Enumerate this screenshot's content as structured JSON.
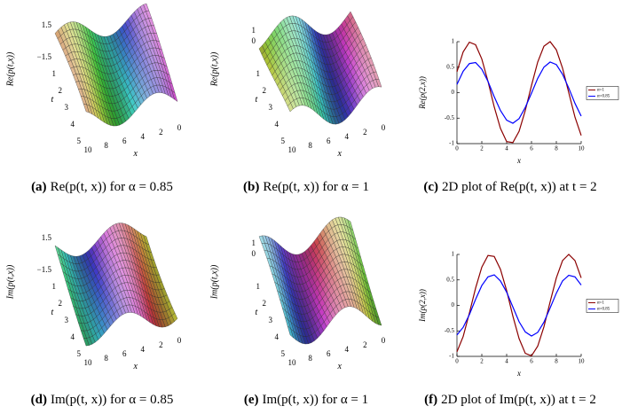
{
  "chart_data": [
    {
      "type": "surface",
      "label": "(a)",
      "caption": "Re(p(t, x)) for α = 0.85",
      "zlabel": "Re(p(t,x))",
      "xlabel": "x",
      "ylabel": "t",
      "xlim": [
        0,
        10
      ],
      "ylim": [
        0,
        5
      ],
      "xticks": [
        0,
        2,
        4,
        6,
        8,
        10
      ],
      "yticks": [
        1,
        2,
        3,
        4,
        5
      ],
      "zticks": [
        1.5,
        {
          "value": -1.5,
          "label": "−1.5"
        }
      ]
    },
    {
      "type": "surface",
      "label": "(b)",
      "caption": "Re(p(t, x)) for α = 1",
      "zlabel": "Re(p(t,x))",
      "xlabel": "x",
      "ylabel": "t",
      "xlim": [
        0,
        10
      ],
      "ylim": [
        0,
        5
      ],
      "xticks": [
        0,
        2,
        4,
        6,
        8,
        10
      ],
      "yticks": [
        1,
        2,
        3,
        4,
        5
      ],
      "zticks": [
        1,
        0
      ]
    },
    {
      "type": "line",
      "label": "(c)",
      "caption": "2D plot of Re(p(t, x)) at t = 2",
      "ylabel": "Re(p(2,x))",
      "xlabel": "x",
      "x": [
        0,
        0.5,
        1,
        1.5,
        2,
        2.5,
        3,
        3.5,
        4,
        4.5,
        5,
        5.5,
        6,
        6.5,
        7,
        7.5,
        8,
        8.5,
        9,
        9.5,
        10
      ],
      "series": [
        {
          "name": "α=1",
          "color": "#8b0000",
          "values": [
            0.41,
            0.8,
            0.99,
            0.94,
            0.66,
            0.22,
            -0.28,
            -0.7,
            -0.96,
            -0.98,
            -0.76,
            -0.35,
            0.14,
            0.6,
            0.91,
            1,
            0.84,
            0.48,
            0,
            -0.48,
            -0.84
          ]
        },
        {
          "name": "α=0.85",
          "color": "#0000ff",
          "values": [
            0.16,
            0.42,
            0.57,
            0.59,
            0.46,
            0.22,
            -0.08,
            -0.35,
            -0.54,
            -0.6,
            -0.51,
            -0.29,
            -0.01,
            0.28,
            0.5,
            0.6,
            0.55,
            0.36,
            0.09,
            -0.21,
            -0.46
          ]
        }
      ],
      "xlim": [
        0,
        10
      ],
      "ylim": [
        -1,
        1
      ],
      "xticks": [
        0,
        2,
        4,
        6,
        8,
        10
      ],
      "yticks": [
        -1,
        -0.5,
        0,
        0.5,
        1
      ]
    },
    {
      "type": "surface",
      "label": "(d)",
      "caption": "Im(p(t, x)) for α = 0.85",
      "zlabel": "Im(p(t,x))",
      "xlabel": "x",
      "ylabel": "t",
      "xlim": [
        0,
        10
      ],
      "ylim": [
        0,
        5
      ],
      "xticks": [
        0,
        2,
        4,
        6,
        8,
        10
      ],
      "yticks": [
        1,
        2,
        3,
        4,
        5
      ],
      "zticks": [
        1.5,
        {
          "value": -1.5,
          "label": "−1.5"
        }
      ]
    },
    {
      "type": "surface",
      "label": "(e)",
      "caption": "Im(p(t, x)) for α = 1",
      "zlabel": "Im(p(t,x))",
      "xlabel": "x",
      "ylabel": "t",
      "xlim": [
        0,
        10
      ],
      "ylim": [
        0,
        5
      ],
      "xticks": [
        0,
        2,
        4,
        6,
        8,
        10
      ],
      "yticks": [
        1,
        2,
        3,
        4,
        5
      ],
      "zticks": [
        1,
        0
      ]
    },
    {
      "type": "line",
      "label": "(f)",
      "caption": "2D plot of Im(p(t, x)) at t = 2",
      "ylabel": "Im(p(2,x))",
      "xlabel": "x",
      "x": [
        0,
        0.5,
        1,
        1.5,
        2,
        2.5,
        3,
        3.5,
        4,
        4.5,
        5,
        5.5,
        6,
        6.5,
        7,
        7.5,
        8,
        8.5,
        9,
        9.5,
        10
      ],
      "series": [
        {
          "name": "α=1",
          "color": "#8b0000",
          "values": [
            -0.91,
            -0.61,
            -0.15,
            0.34,
            0.75,
            0.98,
            0.96,
            0.71,
            0.29,
            -0.21,
            -0.65,
            -0.94,
            -0.99,
            -0.8,
            -0.42,
            0.07,
            0.54,
            0.88,
            1,
            0.88,
            0.54
          ]
        },
        {
          "name": "α=0.85",
          "color": "#0000ff",
          "values": [
            -0.58,
            -0.43,
            -0.18,
            0.12,
            0.39,
            0.56,
            0.6,
            0.48,
            0.26,
            -0.03,
            -0.32,
            -0.52,
            -0.6,
            -0.53,
            -0.33,
            -0.05,
            0.24,
            0.48,
            0.59,
            0.56,
            0.4
          ]
        }
      ],
      "xlim": [
        0,
        10
      ],
      "ylim": [
        -1,
        1
      ],
      "xticks": [
        0,
        2,
        4,
        6,
        8,
        10
      ],
      "yticks": [
        -1,
        -0.5,
        0,
        0.5,
        1
      ]
    }
  ]
}
